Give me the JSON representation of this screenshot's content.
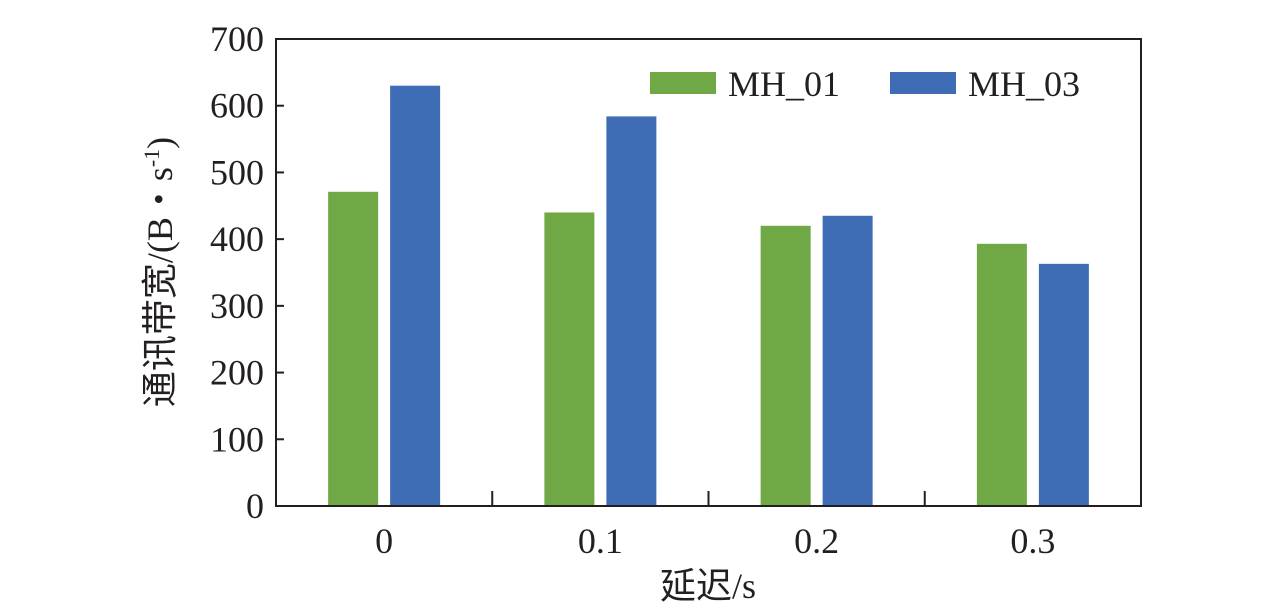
{
  "chart_data": {
    "type": "bar",
    "title": "",
    "xlabel": "延迟/s",
    "ylabel_main": "通讯带宽/(B・s",
    "ylabel_sup": "-1",
    "ylabel_close": ")",
    "categories": [
      "0",
      "0.1",
      "0.2",
      "0.3"
    ],
    "series": [
      {
        "name": "MH_01",
        "color": "#70a846",
        "values": [
          471,
          440,
          420,
          393
        ]
      },
      {
        "name": "MH_03",
        "color": "#3e6db5",
        "values": [
          630,
          584,
          435,
          363
        ]
      }
    ],
    "ylim": [
      0,
      700
    ],
    "yticks": [
      0,
      100,
      200,
      300,
      400,
      500,
      600,
      700
    ],
    "grid": false,
    "legend_position": "top-right"
  }
}
